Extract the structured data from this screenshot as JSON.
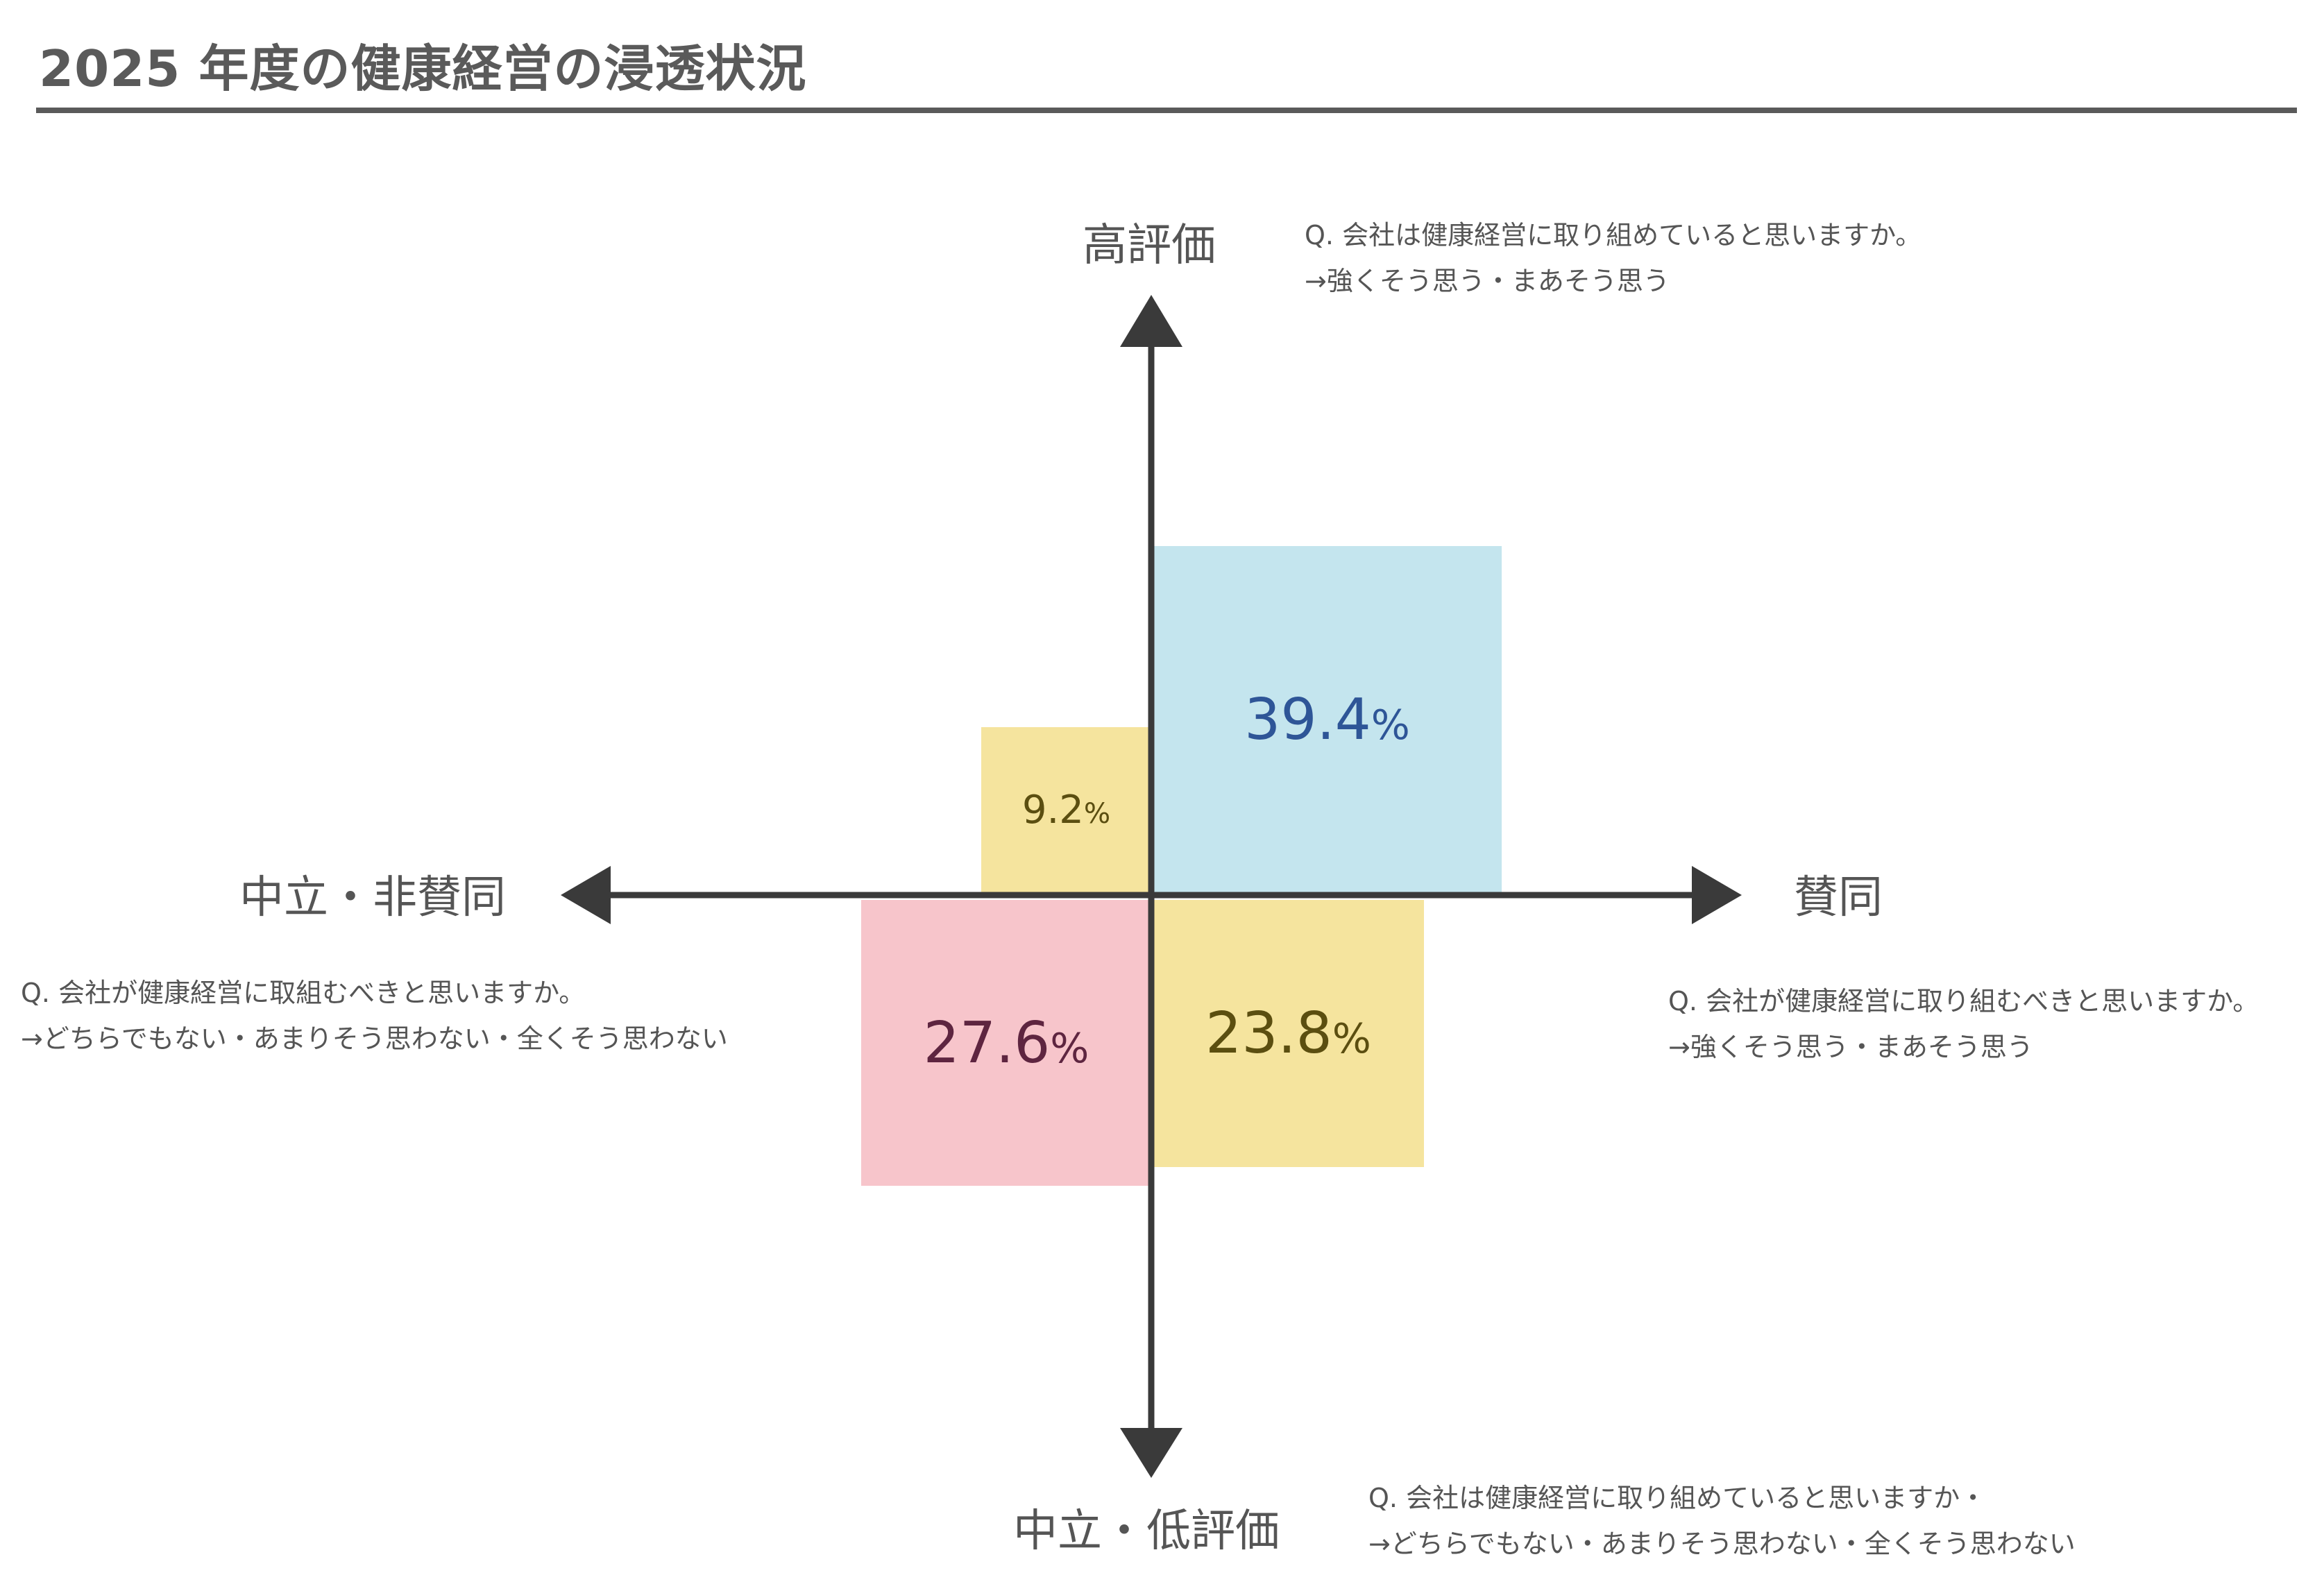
{
  "title": "2025 年度の健康経営の浸透状況",
  "axes": {
    "top": "高評価",
    "bottom": "中立・低評価",
    "left": "中立・非賛同",
    "right": "賛同"
  },
  "notes": {
    "top_right": {
      "question": "Q. 会社は健康経営に取り組めていると思いますか。",
      "answer": "→強くそう思う・まあそう思う"
    },
    "right": {
      "question": "Q. 会社が健康経営に取り組むべきと思いますか。",
      "answer": "→強くそう思う・まあそう思う"
    },
    "left": {
      "question": "Q. 会社が健康経営に取組むべきと思いますか。",
      "answer": "→どちらでもない・あまりそう思わない・全くそう思わない"
    },
    "bottom_right": {
      "question": "Q. 会社は健康経営に取り組めていると思いますか・",
      "answer": "→どちらでもない・あまりそう思わない・全くそう思わない"
    }
  },
  "quadrants": {
    "top_right": {
      "value": "39.4",
      "unit": "%",
      "fill": "#c4e5ee",
      "text_color": "#2e5597"
    },
    "top_left": {
      "value": "9.2",
      "unit": "%",
      "fill": "#f5e49e",
      "text_color": "#5b4e10"
    },
    "bottom_left": {
      "value": "27.6",
      "unit": "%",
      "fill": "#f7c5cb",
      "text_color": "#5e2540"
    },
    "bottom_right": {
      "value": "23.8",
      "unit": "%",
      "fill": "#f5e49e",
      "text_color": "#5b4e10"
    }
  },
  "colors": {
    "axis": "#3a3a3a",
    "title": "#5a5a5a"
  }
}
